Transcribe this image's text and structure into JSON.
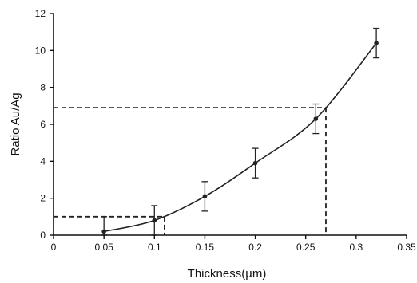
{
  "chart_data": {
    "type": "line",
    "title": "",
    "xlabel": "Thickness(µm)",
    "ylabel": "Ratio Au/Ag",
    "xlim": [
      0,
      0.35
    ],
    "ylim": [
      0,
      12
    ],
    "x_ticks": [
      "0",
      "0.05",
      "0.1",
      "0.15",
      "0.2",
      "0.25",
      "0.3",
      "0.35"
    ],
    "y_ticks": [
      "0",
      "2",
      "4",
      "6",
      "8",
      "10",
      "12"
    ],
    "grid": false,
    "legend": "none",
    "series": [
      {
        "x": [
          0.05,
          0.1,
          0.15,
          0.2,
          0.26,
          0.32
        ],
        "y": [
          0.2,
          0.8,
          2.1,
          3.9,
          6.3,
          10.4
        ],
        "error": [
          0.8,
          0.8,
          0.8,
          0.8,
          0.8,
          0.8
        ]
      }
    ],
    "reference_lines": [
      {
        "x": 0.11,
        "y": 1.0,
        "style": "dashed"
      },
      {
        "x": 0.27,
        "y": 6.9,
        "style": "dashed"
      }
    ],
    "colors": {
      "line": "#222222",
      "axis": "#111111",
      "dashed": "#222222"
    }
  }
}
